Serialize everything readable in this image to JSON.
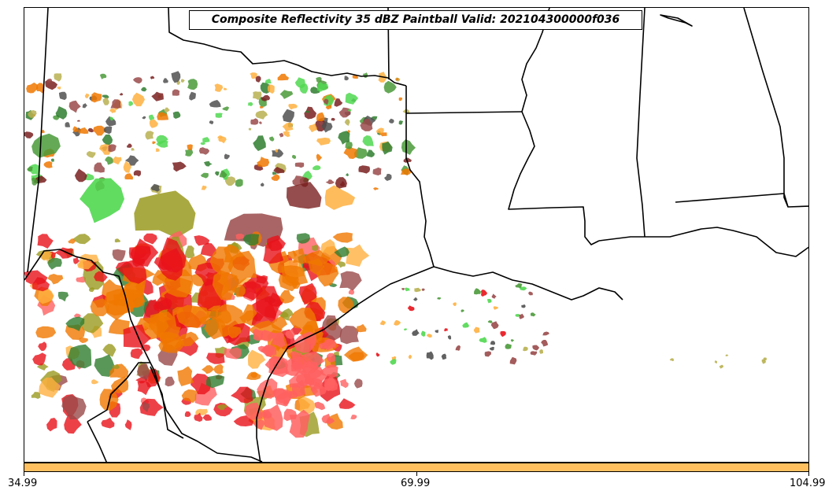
{
  "title": "Composite Reflectivity 35 dBZ Paintball Valid: 202104300000f036",
  "colorbar": {
    "color": "#ffc060",
    "ticks": [
      "34.99",
      "69.99",
      "104.99"
    ]
  },
  "palette": {
    "red": "#e8121a",
    "light_red": "#ff6060",
    "orange": "#f07800",
    "light_orange": "#ffb040",
    "light_green": "#50d850",
    "dark_green": "#2f7d2f",
    "mid_green": "#4a9a3a",
    "olive": "#9a9a20",
    "khaki": "#b8b050",
    "maroon": "#7a2020",
    "rose_brown": "#9a4a4a",
    "dark_gray": "#505050"
  }
}
